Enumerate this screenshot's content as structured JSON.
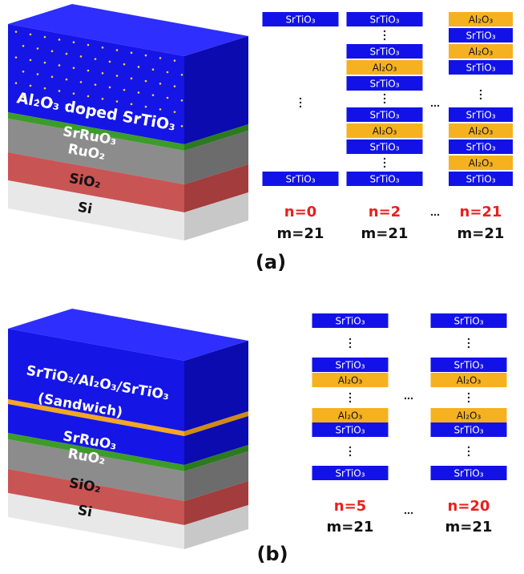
{
  "panel_a": {
    "label": "(a)",
    "cube": {
      "layers": [
        "Al₂O₃ doped SrTiO₃",
        "SrRuO₃",
        "RuO₂",
        "SiO₂",
        "Si"
      ]
    },
    "columns": [
      {
        "blocks": [
          "SrTiO₃",
          "SrTiO₃"
        ],
        "n": "n=0",
        "m": "m=21"
      },
      {
        "blocks": [
          "SrTiO₃",
          "SrTiO₃",
          "Al₂O₃",
          "SrTiO₃",
          "SrTiO₃",
          "Al₂O₃",
          "SrTiO₃",
          "SrTiO₃"
        ],
        "n": "n=2",
        "m": "m=21"
      },
      {
        "blocks": [
          "Al₂O₃",
          "SrTiO₃",
          "Al₂O₃",
          "SrTiO₃",
          "SrTiO₃",
          "Al₂O₃",
          "SrTiO₃",
          "Al₂O₃",
          "SrTiO₃"
        ],
        "n": "n=21",
        "m": "m=21"
      }
    ]
  },
  "panel_b": {
    "label": "(b)",
    "cube": {
      "layers": [
        "SrTiO₃/Al₂O₃/SrTiO₃",
        "(Sandwich)",
        "SrRuO₃",
        "RuO₂",
        "SiO₂",
        "Si"
      ]
    },
    "columns": [
      {
        "blocks": [
          "SrTiO₃",
          "SrTiO₃",
          "Al₂O₃",
          "Al₂O₃",
          "SrTiO₃",
          "SrTiO₃"
        ],
        "n": "n=5",
        "m": "m=21"
      },
      {
        "blocks": [
          "SrTiO₃",
          "SrTiO₃",
          "Al₂O₃",
          "Al₂O₃",
          "SrTiO₃",
          "SrTiO₃"
        ],
        "n": "n=20",
        "m": "m=21"
      }
    ]
  }
}
